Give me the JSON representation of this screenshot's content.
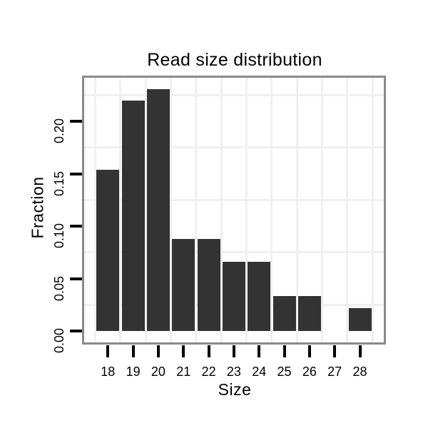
{
  "chart_data": {
    "type": "bar",
    "title": "Read size distribution",
    "xlabel": "Size",
    "ylabel": "Fraction",
    "categories": [
      "18",
      "19",
      "20",
      "21",
      "22",
      "23",
      "24",
      "25",
      "26",
      "27",
      "28"
    ],
    "values": [
      0.1538,
      0.2198,
      0.2308,
      0.0879,
      0.0879,
      0.0659,
      0.0659,
      0.033,
      0.033,
      0,
      0.022
    ],
    "y_ticks": [
      0.0,
      0.05,
      0.1,
      0.15,
      0.2
    ],
    "y_tick_labels": [
      "0.00",
      "0.05",
      "0.10",
      "0.15",
      "0.20"
    ],
    "ylim": [
      -0.012,
      0.243
    ],
    "grid": "minor-only",
    "legend": "none",
    "colors": {
      "bar_fill": "#333333",
      "panel_border": "#8a8a8a",
      "gridline": "#f0f0f0",
      "tick": "#000000",
      "text": "#000000",
      "background": "#ffffff"
    }
  }
}
